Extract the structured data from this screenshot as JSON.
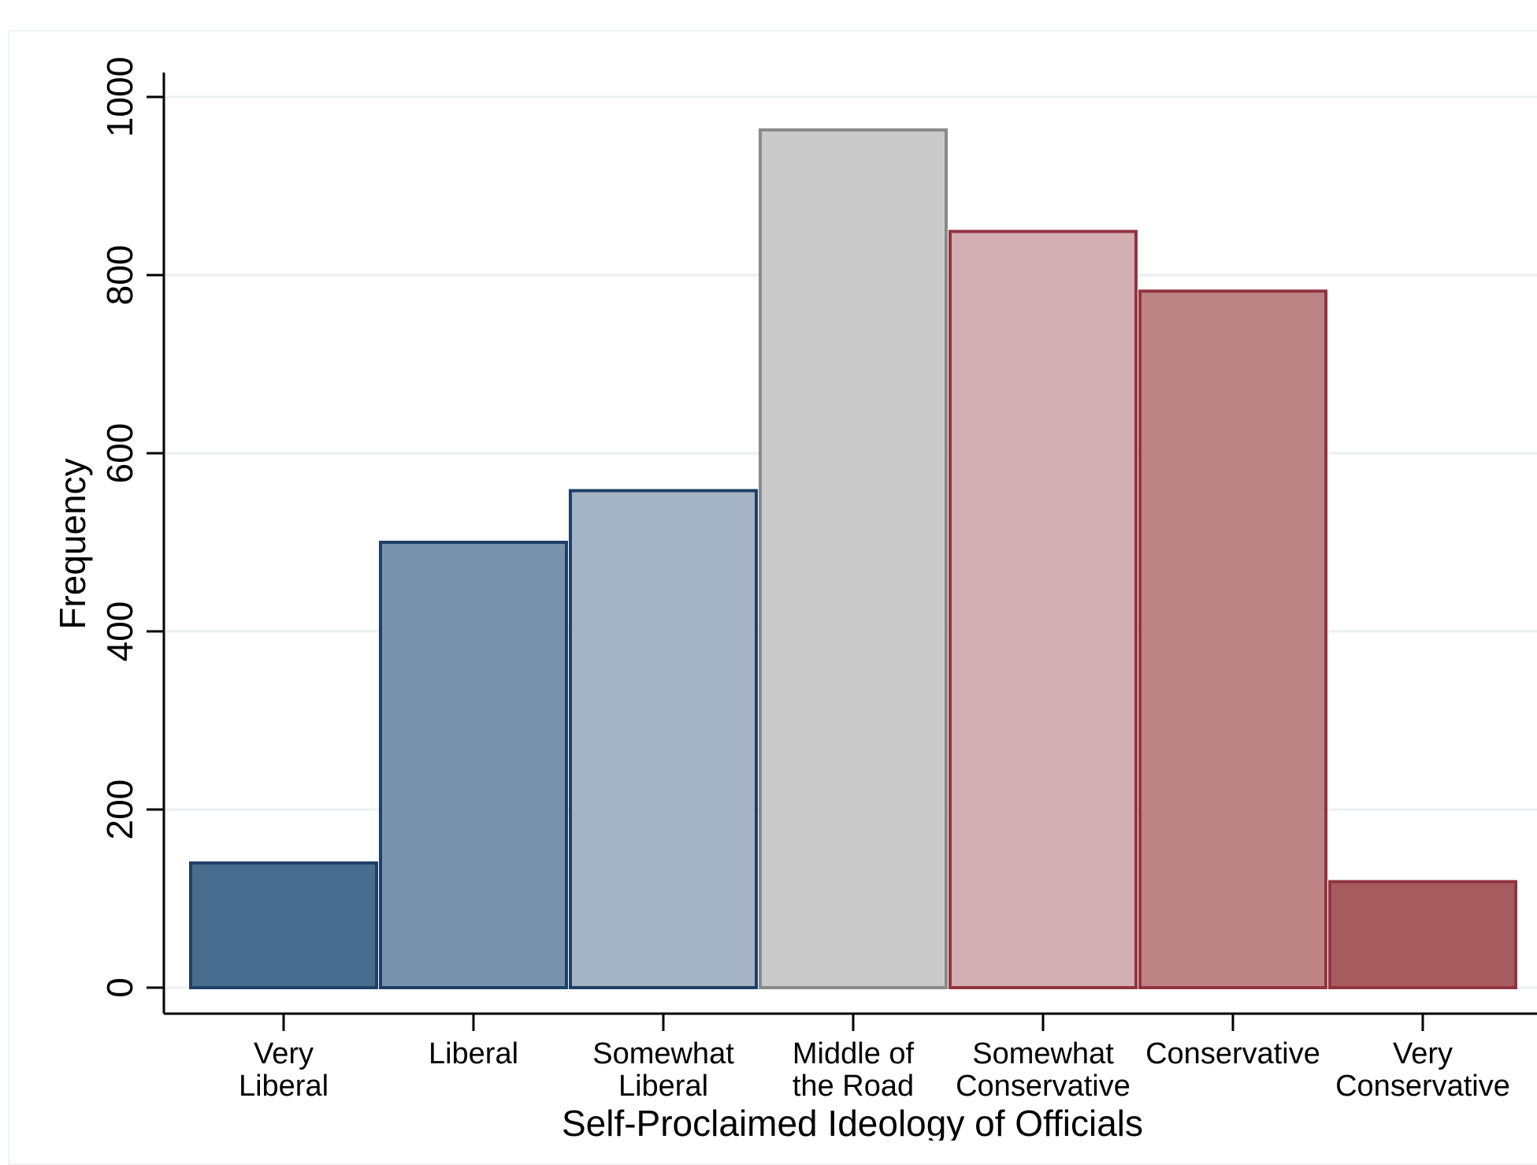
{
  "chart_data": {
    "type": "bar",
    "categories": [
      [
        "Very",
        "Liberal"
      ],
      [
        "Liberal"
      ],
      [
        "Somewhat",
        "Liberal"
      ],
      [
        "Middle of",
        "the Road"
      ],
      [
        "Somewhat",
        "Conservative"
      ],
      [
        "Conservative"
      ],
      [
        "Very",
        "Conservative"
      ]
    ],
    "values": [
      140,
      500,
      558,
      963,
      849,
      782,
      119
    ],
    "colors": [
      {
        "fill": "#486c8e",
        "stroke": "#1f3f66"
      },
      {
        "fill": "#7993ac",
        "stroke": "#1f3f66"
      },
      {
        "fill": "#a5b4c5",
        "stroke": "#1f3f66"
      },
      {
        "fill": "#cacaca",
        "stroke": "#8a8a8a"
      },
      {
        "fill": "#d3aeb2",
        "stroke": "#923440"
      },
      {
        "fill": "#bd8486",
        "stroke": "#923440"
      },
      {
        "fill": "#a65b5f",
        "stroke": "#923440"
      }
    ],
    "title": "",
    "xlabel": "Self-Proclaimed Ideology of Officials",
    "ylabel": "Frequency",
    "yticks": [
      0,
      200,
      400,
      600,
      800,
      1000
    ],
    "ylim": [
      0,
      1000
    ],
    "grid": true,
    "gridColor": "#eaf0f0"
  }
}
